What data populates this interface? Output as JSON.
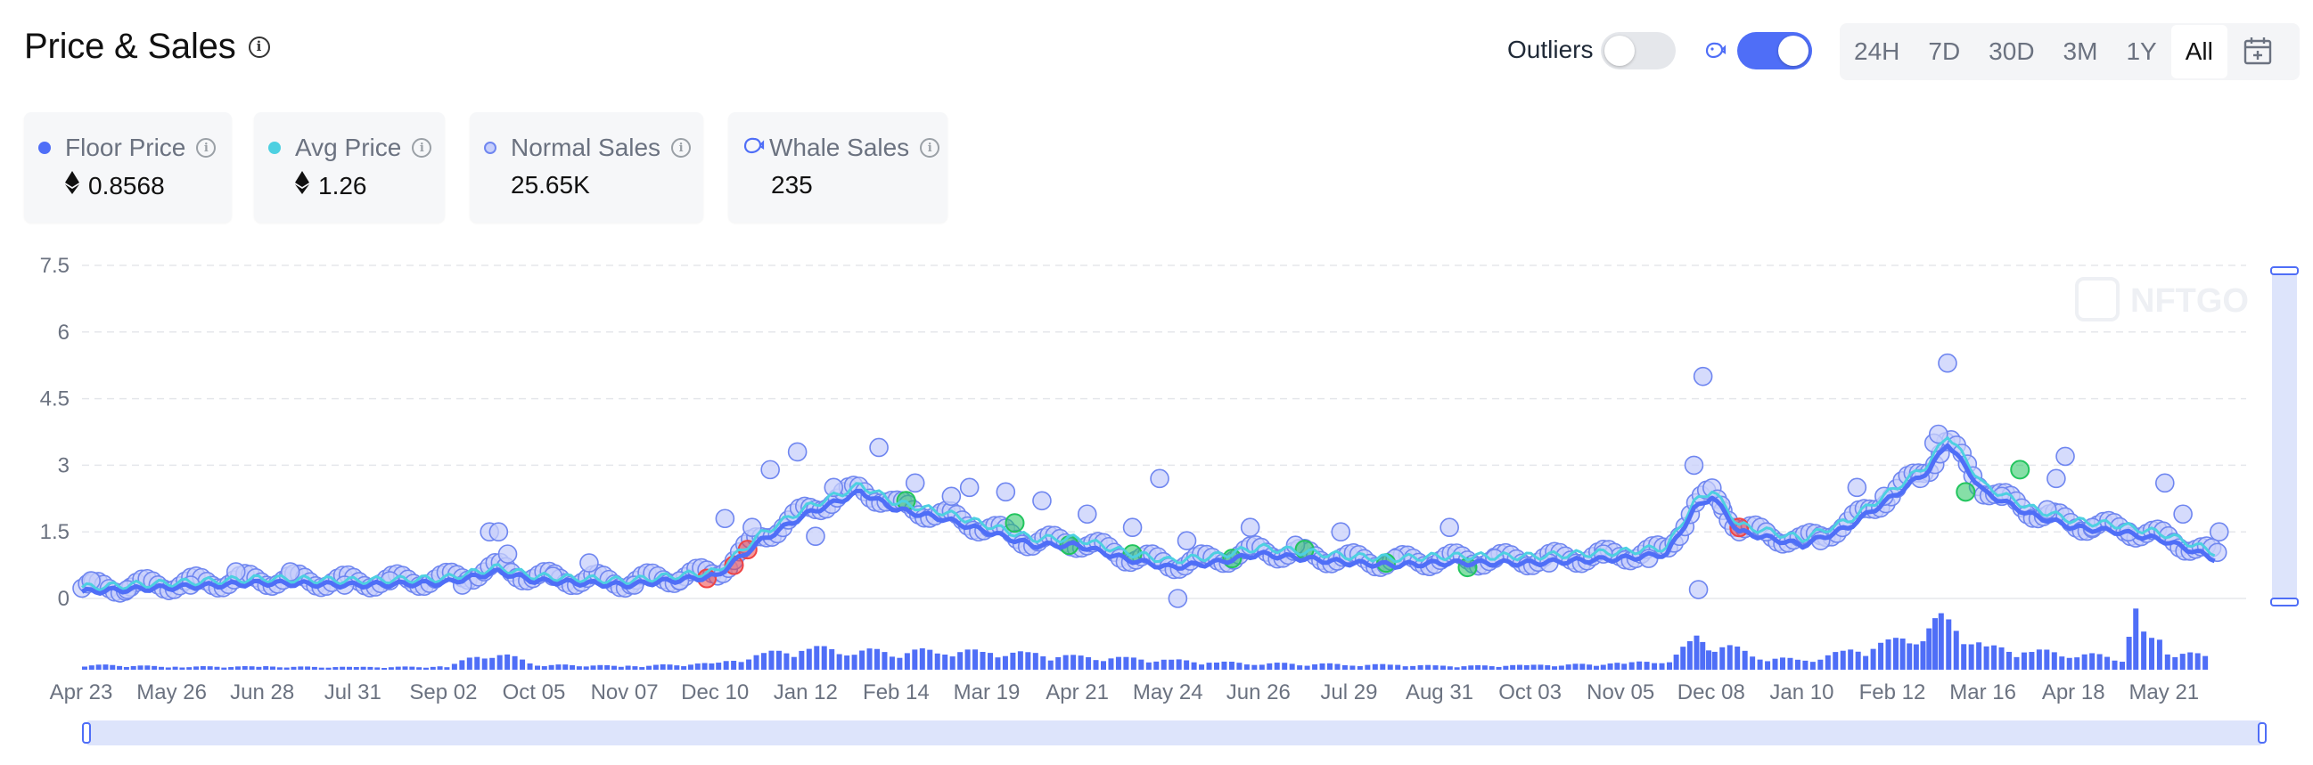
{
  "header": {
    "title": "Price & Sales",
    "outliers_label": "Outliers",
    "outliers_enabled": false,
    "whale_toggle_enabled": true
  },
  "range_tabs": [
    {
      "label": "24H",
      "active": false
    },
    {
      "label": "7D",
      "active": false
    },
    {
      "label": "30D",
      "active": false
    },
    {
      "label": "3M",
      "active": false
    },
    {
      "label": "1Y",
      "active": false
    },
    {
      "label": "All",
      "active": true
    }
  ],
  "icons": {
    "title_info": "info-circle-icon",
    "whale_toggle": "whale-icon",
    "calendar": "calendar-icon",
    "eth": "ethereum-icon"
  },
  "stats": [
    {
      "label": "Floor Price",
      "value": "0.8568",
      "currency_icon": true,
      "marker": "dot",
      "color": "#4f6ef7"
    },
    {
      "label": "Avg Price",
      "value": "1.26",
      "currency_icon": true,
      "marker": "dot",
      "color": "#4dd0e1"
    },
    {
      "label": "Normal Sales",
      "value": "25.65K",
      "currency_icon": false,
      "marker": "ring",
      "color": "#8da2fb"
    },
    {
      "label": "Whale Sales",
      "value": "235",
      "currency_icon": false,
      "marker": "whale",
      "color": "#4f6ef7"
    }
  ],
  "colors": {
    "floor": "#4f6ef7",
    "avg": "#4dd0e1",
    "sale_fill": "#c7cffb",
    "sale_stroke": "#6f86f0",
    "buy": "#22c55e",
    "sell": "#ef4444",
    "volume": "#4f6ef7",
    "grid": "#e5e7eb"
  },
  "chart_data": {
    "type": "line",
    "title": "",
    "xlabel": "",
    "ylabel": "",
    "ylim": [
      0,
      7.5
    ],
    "y_ticks": [
      "7.5",
      "6",
      "4.5",
      "3",
      "1.5",
      "0"
    ],
    "x_ticks": [
      "Apr 23",
      "May 26",
      "Jun 28",
      "Jul 31",
      "Sep 02",
      "Oct 05",
      "Nov 07",
      "Dec 10",
      "Jan 12",
      "Feb 14",
      "Mar 19",
      "Apr 21",
      "May 24",
      "Jun 26",
      "Jul 29",
      "Aug 31",
      "Oct 03",
      "Nov 05",
      "Dec 08",
      "Jan 10",
      "Feb 12",
      "Mar 16",
      "Apr 18",
      "May 21"
    ],
    "grid": true,
    "watermark": "NFTGO",
    "series": [
      {
        "name": "Floor Price",
        "kind": "line",
        "x_index": [
          0,
          1,
          2,
          3,
          4,
          4.6,
          5,
          6,
          7,
          7.5,
          8,
          8.6,
          9,
          9.5,
          10,
          10.5,
          11,
          11.5,
          12,
          12.5,
          13,
          13.5,
          14,
          14.5,
          15,
          16,
          17,
          17.5,
          17.8,
          18,
          18.3,
          19,
          19.5,
          20,
          20.4,
          20.6,
          21,
          21.5,
          22,
          22.5,
          23,
          23.6
        ],
        "values": [
          0.15,
          0.25,
          0.35,
          0.3,
          0.35,
          0.6,
          0.4,
          0.3,
          0.5,
          1.3,
          1.9,
          2.4,
          2.0,
          1.8,
          1.5,
          1.2,
          1.2,
          0.9,
          0.7,
          0.8,
          1.0,
          0.9,
          0.8,
          0.75,
          0.8,
          0.8,
          0.9,
          1.0,
          2.0,
          2.3,
          1.5,
          1.2,
          1.6,
          2.3,
          2.9,
          3.5,
          2.4,
          1.9,
          1.6,
          1.5,
          1.3,
          0.86
        ]
      },
      {
        "name": "Avg Price",
        "kind": "line",
        "x_index": [
          0,
          1,
          2,
          3,
          4,
          4.6,
          5,
          6,
          7,
          7.5,
          8,
          8.6,
          9,
          9.5,
          10,
          10.5,
          11,
          11.5,
          12,
          12.5,
          13,
          13.5,
          14,
          14.5,
          15,
          16,
          17,
          17.5,
          17.8,
          18,
          18.3,
          19,
          19.5,
          20,
          20.4,
          20.6,
          21,
          21.5,
          22,
          22.5,
          23,
          23.6
        ],
        "values": [
          0.25,
          0.35,
          0.45,
          0.4,
          0.45,
          0.7,
          0.5,
          0.4,
          0.6,
          1.45,
          2.05,
          2.55,
          2.15,
          1.95,
          1.65,
          1.35,
          1.35,
          1.05,
          0.85,
          0.95,
          1.15,
          1.05,
          0.95,
          0.9,
          0.95,
          0.95,
          1.05,
          1.15,
          2.15,
          2.45,
          1.65,
          1.35,
          1.75,
          2.45,
          3.05,
          3.7,
          2.55,
          2.05,
          1.75,
          1.65,
          1.45,
          1.0
        ]
      },
      {
        "name": "Normal Sales",
        "kind": "scatter",
        "x_index": [
          0.1,
          0.5,
          1.2,
          1.7,
          2.3,
          2.9,
          3.4,
          4.2,
          4.5,
          4.6,
          4.7,
          5.2,
          5.6,
          6.1,
          6.6,
          7.1,
          7.4,
          7.6,
          7.9,
          8.1,
          8.3,
          8.8,
          9.2,
          9.6,
          9.8,
          10.2,
          10.6,
          11.1,
          11.6,
          11.9,
          12.1,
          12.2,
          12.9,
          13.4,
          13.9,
          14.5,
          15.1,
          15.6,
          16.2,
          16.8,
          17.3,
          17.8,
          17.85,
          17.9,
          18.1,
          18.6,
          19.2,
          19.6,
          19.9,
          20.3,
          20.45,
          20.5,
          20.6,
          21.2,
          21.7,
          21.8,
          21.9,
          22.2,
          22.6,
          23.0,
          23.2,
          23.6
        ],
        "values": [
          0.4,
          0.2,
          0.3,
          0.6,
          0.6,
          0.3,
          0.4,
          0.3,
          1.5,
          1.5,
          1.0,
          0.5,
          0.8,
          0.3,
          0.4,
          1.8,
          1.6,
          2.9,
          3.3,
          1.4,
          2.5,
          3.4,
          2.6,
          2.3,
          2.5,
          2.4,
          2.2,
          1.9,
          1.6,
          2.7,
          0.0,
          1.3,
          1.6,
          1.2,
          1.5,
          0.9,
          1.6,
          0.9,
          0.8,
          1.0,
          0.9,
          3.0,
          0.2,
          5.0,
          2.1,
          1.5,
          1.3,
          2.5,
          2.3,
          2.7,
          3.5,
          3.7,
          5.3,
          2.3,
          2.0,
          2.7,
          3.2,
          1.6,
          1.5,
          2.6,
          1.9,
          1.5
        ]
      },
      {
        "name": "Whale Sales",
        "kind": "scatter",
        "x_index": [
          6.9,
          7.2,
          7.35,
          9.1,
          10.3,
          10.9,
          11.6,
          12.7,
          13.5,
          14.4,
          15.3,
          18.3,
          20.8,
          21.4
        ],
        "values": [
          0.45,
          0.75,
          1.1,
          2.2,
          1.7,
          1.2,
          1.0,
          0.9,
          1.1,
          0.8,
          0.7,
          1.6,
          2.4,
          2.9
        ]
      },
      {
        "name": "Volume",
        "kind": "bar",
        "x_index": [
          0,
          1,
          2,
          3,
          4,
          4.5,
          5,
          6,
          7,
          7.5,
          8,
          8.5,
          9,
          9.5,
          10,
          10.5,
          11,
          11.5,
          12,
          12.5,
          13,
          13.5,
          14,
          14.5,
          15,
          16,
          17,
          17.5,
          17.8,
          18,
          18.5,
          19,
          19.5,
          20,
          20.3,
          20.5,
          21,
          21.5,
          22,
          22.5,
          22.65,
          23,
          23.5
        ],
        "values": [
          0.08,
          0.05,
          0.05,
          0.04,
          0.05,
          0.3,
          0.08,
          0.06,
          0.1,
          0.25,
          0.35,
          0.3,
          0.3,
          0.3,
          0.28,
          0.25,
          0.2,
          0.18,
          0.15,
          0.12,
          0.1,
          0.1,
          0.08,
          0.08,
          0.06,
          0.07,
          0.1,
          0.15,
          0.5,
          0.45,
          0.2,
          0.15,
          0.3,
          0.45,
          0.6,
          0.8,
          0.35,
          0.3,
          0.25,
          0.2,
          1.0,
          0.3,
          0.2
        ]
      }
    ]
  }
}
